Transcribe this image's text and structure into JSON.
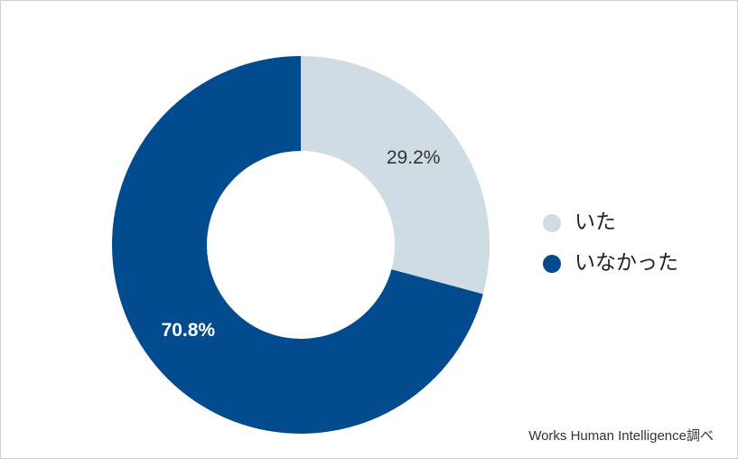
{
  "chart_data": {
    "type": "donut",
    "categories": [
      "いた",
      "いなかった"
    ],
    "values": [
      29.2,
      70.8
    ],
    "value_labels": [
      "29.2%",
      "70.8%"
    ],
    "colors": [
      "#cfdce4",
      "#034b8f"
    ],
    "legend": "right",
    "source": "Works Human Intelligence調べ"
  }
}
